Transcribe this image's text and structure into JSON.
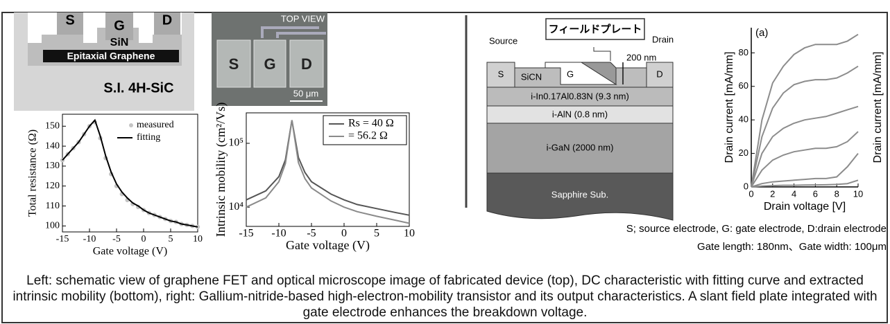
{
  "schematic": {
    "electrodes": [
      "S",
      "G",
      "D"
    ],
    "insulator": "SiN",
    "channel": "Epitaxial Graphene",
    "substrate": "S.I. 4H-SiC"
  },
  "micrograph": {
    "title": "TOP VIEW",
    "electrodes": [
      "S",
      "G",
      "D"
    ],
    "scale_bar": "50 μm"
  },
  "hemt": {
    "source": "Source",
    "drain": "Drain",
    "field_plate": "フィールドプレート",
    "dimension": "200 nm",
    "electrodes": [
      "S",
      "SiCN",
      "G",
      "D"
    ],
    "layers": [
      "i-In0.17Al0.83N (9.3 nm)",
      "i-AlN (0.8 nm)",
      "i-GaN (2000 nm)",
      "Sapphire Sub."
    ]
  },
  "notes": [
    "S; source electrode, G: gate electrode, D:drain electrode",
    "Gate length: 180nm、Gate width: 100μm"
  ],
  "caption": "Left: schematic view of graphene FET and optical microscope image of fabricated device (top), DC characteristic with fitting curve and extracted intrinsic mobility (bottom), right: Gallium-nitride-based high-electron-mobility transistor and its output characteristics. A slant field plate integrated with gate electrode enhances the breakdown voltage.",
  "chart_data": [
    {
      "type": "line",
      "x_label": "Gate voltage (V)",
      "y_label": "Total resistance (Ω)",
      "x": [
        -15,
        -14,
        -13,
        -12,
        -11,
        -10,
        -9,
        -8,
        -7,
        -6,
        -5,
        -4,
        -3,
        -2,
        -1,
        0,
        1,
        2,
        3,
        4,
        5,
        6,
        7,
        8,
        9,
        10
      ],
      "series": [
        {
          "name": "measured",
          "color": "#c4c4c4",
          "marker": "circle",
          "values": [
            133,
            136,
            139,
            142,
            146,
            150,
            152,
            144,
            134,
            126,
            120,
            116,
            113,
            111,
            109.5,
            108,
            106.5,
            105.5,
            104.5,
            103.5,
            102.5,
            102,
            101,
            100.5,
            100,
            99.5
          ]
        },
        {
          "name": "fitting",
          "color": "#000000",
          "values": [
            133,
            136,
            139,
            142,
            146,
            150,
            153,
            145,
            135,
            127,
            121,
            117,
            114,
            111.5,
            110,
            108,
            106.5,
            105.5,
            104.5,
            103.5,
            102.5,
            102,
            101,
            100.5,
            100,
            99.5
          ]
        }
      ],
      "xlim": [
        -15,
        10
      ],
      "ylim": [
        97,
        156
      ],
      "xticks": [
        -15,
        -10,
        -5,
        0,
        5,
        10
      ],
      "yticks": [
        100,
        110,
        120,
        130,
        140,
        150
      ],
      "legend": "upper right"
    },
    {
      "type": "line",
      "x_label": "Gate voltage (V)",
      "y_label": "Intrinsic mobility (cm²/Vs)",
      "log_y": true,
      "x": [
        -15,
        -12,
        -10,
        -9,
        -8,
        -7,
        -6,
        -5,
        -2,
        0,
        2,
        5,
        8,
        10
      ],
      "series": [
        {
          "name": "Rs = 40 Ω",
          "color": "#555555",
          "values": [
            13000,
            18000,
            30000,
            55000,
            230000,
            60000,
            35000,
            25000,
            16000,
            13000,
            11000,
            9500,
            8200,
            7500
          ]
        },
        {
          "name": "= 56.2 Ω",
          "color": "#8a8a8a",
          "values": [
            10000,
            14000,
            25000,
            48000,
            230000,
            50000,
            28000,
            20000,
            12500,
            10000,
            8500,
            7200,
            6200,
            5600
          ]
        }
      ],
      "xlim": [
        -15,
        10
      ],
      "ylim": [
        5000,
        300000
      ],
      "xticks": [
        -15,
        -10,
        -5,
        0,
        5,
        10
      ],
      "yticks": [
        {
          "value": 10000,
          "label": "10⁴"
        },
        {
          "value": 100000,
          "label": "10⁵"
        }
      ],
      "legend": "upper right"
    },
    {
      "type": "line",
      "x_label": "Drain voltage [V]",
      "y_label": "Drain current [mA/mm]",
      "annotation": "(a)",
      "x": [
        0,
        1,
        2,
        3,
        4,
        5,
        6,
        7,
        8,
        9,
        10
      ],
      "series": [
        {
          "color": "#8c8c8c",
          "values": [
            0,
            40,
            62,
            72,
            79,
            83,
            85,
            85,
            85,
            87,
            91
          ]
        },
        {
          "color": "#8c8c8c",
          "values": [
            0,
            30,
            47,
            56,
            61,
            63,
            64,
            64,
            65,
            68,
            72
          ]
        },
        {
          "color": "#8c8c8c",
          "values": [
            0,
            20,
            30,
            35,
            38,
            40,
            41,
            42,
            44,
            46,
            48
          ]
        },
        {
          "color": "#8c8c8c",
          "values": [
            0,
            10,
            16,
            19,
            21,
            22,
            23,
            23,
            24,
            27,
            33
          ]
        },
        {
          "color": "#8c8c8c",
          "values": [
            0,
            2,
            3,
            3.5,
            4,
            4.5,
            5,
            5,
            6,
            12,
            20
          ]
        },
        {
          "color": "#8c8c8c",
          "values": [
            0,
            0.5,
            0.8,
            1,
            1,
            1.1,
            1.2,
            1.3,
            1.5,
            2,
            4
          ]
        }
      ],
      "xlim": [
        0,
        10
      ],
      "ylim": [
        0,
        95
      ],
      "xticks": [
        0,
        2,
        4,
        6,
        8,
        10
      ],
      "yticks": [
        0,
        20,
        40,
        60,
        80
      ]
    }
  ]
}
